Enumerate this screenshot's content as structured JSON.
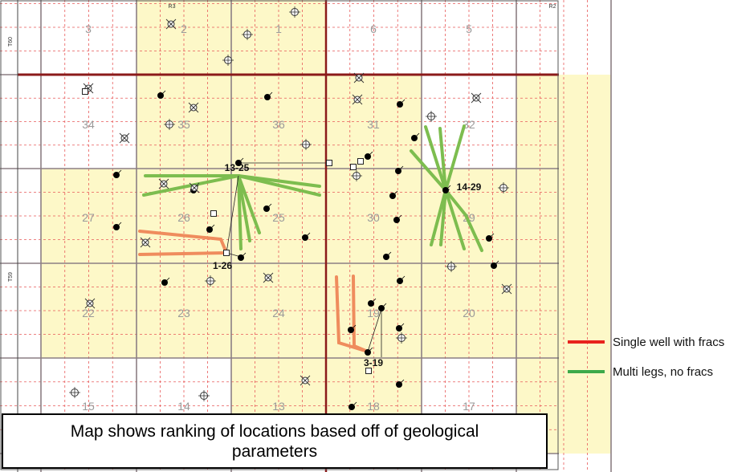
{
  "range_labels": [
    "R3",
    "R2"
  ],
  "township_labels": [
    "T60",
    "T59"
  ],
  "section_numbers": [
    [
      "3",
      "2",
      "1",
      "6",
      "5"
    ],
    [
      "34",
      "35",
      "36",
      "31",
      "32"
    ],
    [
      "27",
      "26",
      "25",
      "30",
      "29"
    ],
    [
      "22",
      "23",
      "24",
      "19",
      "20"
    ],
    [
      "15",
      "14",
      "13",
      "18",
      "17"
    ]
  ],
  "well_labels": [
    "13-25",
    "1-26",
    "14-29",
    "3-19"
  ],
  "legend": [
    {
      "label": "Single well with fracs",
      "color": "#e8231d"
    },
    {
      "label": "Multi legs, no fracs",
      "color": "#3daa4a"
    }
  ],
  "colors": {
    "favorable_section": "#fdf8c8",
    "section_line": "#8c7f84",
    "township_line": "#8b1a1a",
    "quarter_line": "#e85a5a",
    "frac_lateral": "#ef8c5d",
    "multileg_lateral": "#7dbd4f"
  },
  "caption": "Map shows ranking of locations based off of geological parameters"
}
